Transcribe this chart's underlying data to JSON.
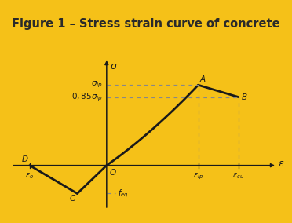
{
  "title": "Figure 1 – Stress strain curve of concrete",
  "title_bg_color": "#F5C118",
  "plot_bg_color": "#F0EFE8",
  "curve_color": "#1a1a1a",
  "dashed_color": "#888888",
  "title_fontsize": 10.5,
  "label_fontsize": 8,
  "key_points": {
    "D": [
      -4.2,
      0.0
    ],
    "C": [
      -1.6,
      -1.05
    ],
    "O": [
      0.0,
      0.0
    ],
    "A": [
      5.0,
      3.0
    ],
    "B": [
      7.2,
      2.55
    ],
    "feq_x": 0.55,
    "feq_y": -1.05,
    "eps_ip_x": 5.0,
    "eps_cu_x": 7.2
  },
  "xlim": [
    -5.5,
    9.8
  ],
  "ylim": [
    -1.9,
    4.3
  ],
  "axis_x_left": -5.2,
  "axis_x_right": 9.3,
  "axis_y_bottom": -1.65,
  "axis_y_top": 4.0,
  "sigma_p_y": 3.0,
  "sigma_085_y": 2.55,
  "bezier_ctrl": [
    2.5,
    1.2
  ]
}
